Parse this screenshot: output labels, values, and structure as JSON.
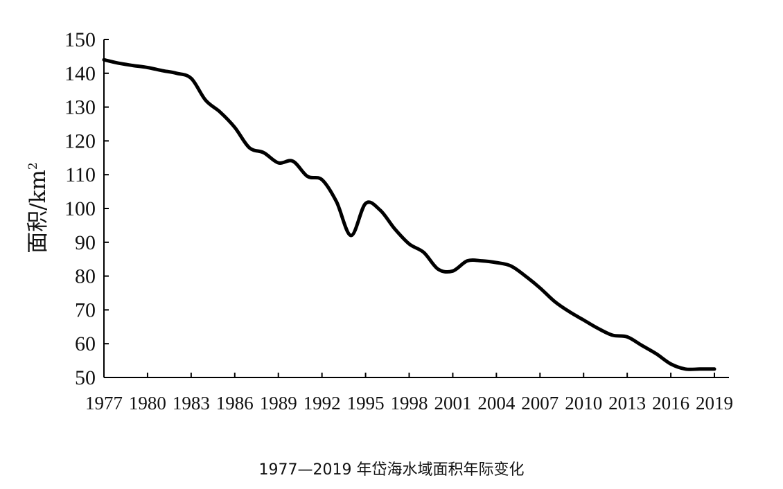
{
  "chart_data": {
    "type": "line",
    "title": "",
    "caption": "1977—2019 年岱海水域面积年际变化",
    "ylabel": "面积/km",
    "ylabel_sup": "2",
    "xlabel": "",
    "x_ticks": [
      "1977",
      "1980",
      "1983",
      "1986",
      "1989",
      "1992",
      "1995",
      "1998",
      "2001",
      "2004",
      "2007",
      "2010",
      "2013",
      "2016",
      "2019"
    ],
    "y_ticks": [
      50,
      60,
      70,
      80,
      90,
      100,
      110,
      120,
      130,
      140,
      150
    ],
    "xlim": [
      1977,
      2020
    ],
    "ylim": [
      50,
      150
    ],
    "grid": false,
    "series": [
      {
        "name": "面积",
        "color": "#000000",
        "x": [
          1977,
          1978,
          1979,
          1980,
          1981,
          1982,
          1983,
          1984,
          1985,
          1986,
          1987,
          1988,
          1989,
          1990,
          1991,
          1992,
          1993,
          1994,
          1995,
          1996,
          1997,
          1998,
          1999,
          2000,
          2001,
          2002,
          2003,
          2004,
          2005,
          2006,
          2007,
          2008,
          2009,
          2010,
          2011,
          2012,
          2013,
          2014,
          2015,
          2016,
          2017,
          2018,
          2019
        ],
        "values": [
          144,
          143,
          142.3,
          141.7,
          140.8,
          140,
          138.5,
          132,
          128.5,
          124,
          118,
          116.5,
          113.5,
          114,
          109.5,
          108.5,
          102,
          92,
          101.5,
          99.5,
          94,
          89.5,
          87,
          82,
          81.5,
          84.5,
          84.5,
          84,
          83,
          80,
          76.5,
          72.5,
          69.5,
          67,
          64.5,
          62.5,
          62,
          59.5,
          57,
          54,
          52.5,
          52.5,
          52.5
        ]
      }
    ]
  }
}
